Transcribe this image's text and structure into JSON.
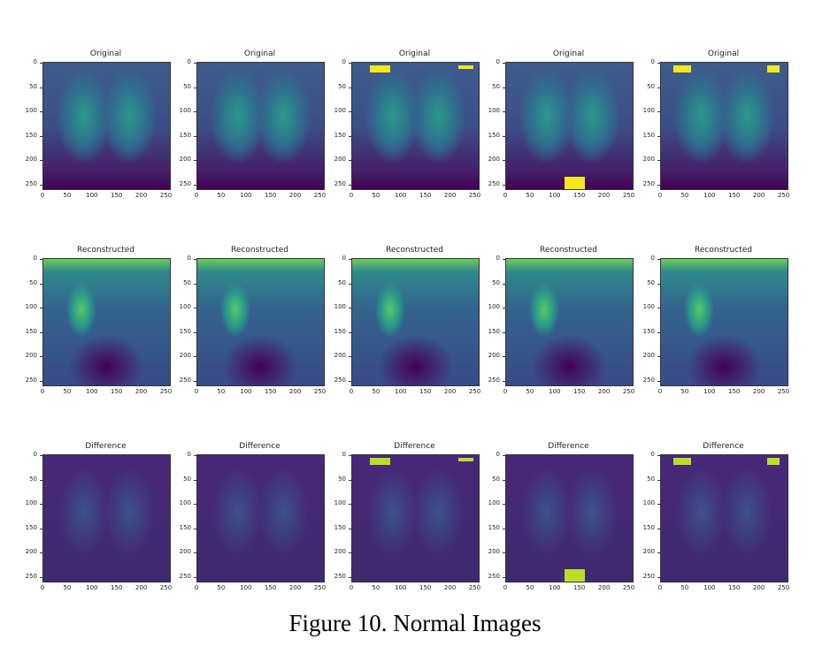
{
  "caption": "Figure 10. Normal Images",
  "rows": [
    {
      "title": "Original",
      "kind": "original"
    },
    {
      "title": "Reconstructed",
      "kind": "recon"
    },
    {
      "title": "Difference",
      "kind": "diff"
    }
  ],
  "axes": {
    "yticks": [
      "0",
      "50",
      "100",
      "150",
      "200",
      "250"
    ],
    "xticks": [
      "0",
      "50",
      "100",
      "150",
      "200",
      "250"
    ]
  },
  "colormap": {
    "low": "#440154",
    "mid": "#21908c",
    "high": "#fde725"
  },
  "columns": 5
}
